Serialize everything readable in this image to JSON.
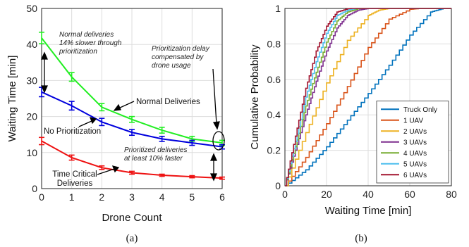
{
  "chart_data": [
    {
      "type": "line",
      "caption": "(a)",
      "title": "",
      "xlabel": "Drone Count",
      "ylabel": "Waiting Time [min]",
      "xlim": [
        0,
        6
      ],
      "ylim": [
        0,
        50
      ],
      "xticks": [
        "0",
        "1",
        "2",
        "3",
        "4",
        "5",
        "6"
      ],
      "yticks": [
        "0",
        "10",
        "20",
        "30",
        "40",
        "50"
      ],
      "grid": true,
      "x": [
        0,
        1,
        2,
        3,
        4,
        5,
        6
      ],
      "series": [
        {
          "color": "#22ee22",
          "values": [
            41.8,
            31.0,
            22.6,
            19.2,
            16.2,
            13.8,
            12.7
          ],
          "errors": [
            1.6,
            1.2,
            1.0,
            0.8,
            0.8,
            0.7,
            0.7
          ]
        },
        {
          "color": "#0000dd",
          "values": [
            26.8,
            23.0,
            18.5,
            15.6,
            13.8,
            12.7,
            11.6
          ],
          "errors": [
            1.3,
            1.2,
            1.0,
            0.8,
            0.7,
            0.7,
            0.6
          ]
        },
        {
          "color": "#ee1111",
          "values": [
            13.2,
            8.6,
            5.8,
            4.4,
            3.7,
            3.3,
            2.9
          ],
          "errors": [
            1.0,
            0.7,
            0.5,
            0.4,
            0.3,
            0.3,
            0.3
          ]
        }
      ],
      "annotations": {
        "normal_note": [
          "Normal deliveries",
          "14% slower through",
          "prioritization"
        ],
        "delay_note": [
          "Prioritization delay",
          "compensated by",
          "drone usage"
        ],
        "faster_note": [
          "Prioritized deliveries",
          "at least 10% faster"
        ],
        "normal_label": "Normal Deliveries",
        "noprio_label": "No Prioritization",
        "critical_label": [
          "Time Critical",
          "Deliveries"
        ]
      }
    },
    {
      "type": "line",
      "caption": "(b)",
      "title": "",
      "xlabel": "Waiting Time [min]",
      "ylabel": "Cumulative Probability",
      "xlim": [
        0,
        80
      ],
      "ylim": [
        0,
        1
      ],
      "xticks": [
        "0",
        "20",
        "40",
        "60",
        "80"
      ],
      "yticks": [
        "0",
        "0.2",
        "0.4",
        "0.6",
        "0.8",
        "1"
      ],
      "grid": true,
      "legend_position": "bottom-right",
      "series": [
        {
          "name": "Truck Only",
          "color": "#0072bd",
          "x": [
            0,
            10,
            20,
            30,
            40,
            50,
            60,
            70,
            76
          ],
          "y": [
            0,
            0.09,
            0.22,
            0.37,
            0.52,
            0.68,
            0.85,
            0.98,
            1.0
          ]
        },
        {
          "name": "1 UAV",
          "color": "#d95319",
          "x": [
            0,
            10,
            20,
            30,
            40,
            50,
            60,
            65
          ],
          "y": [
            0,
            0.16,
            0.35,
            0.56,
            0.78,
            0.94,
            0.995,
            1.0
          ]
        },
        {
          "name": "2 UAVs",
          "color": "#edb120",
          "x": [
            0,
            10,
            20,
            30,
            40,
            45,
            50
          ],
          "y": [
            0,
            0.3,
            0.58,
            0.82,
            0.96,
            0.99,
            1.0
          ]
        },
        {
          "name": "3 UAVs",
          "color": "#7e2f8e",
          "x": [
            0,
            5,
            10,
            15,
            20,
            25,
            30,
            35,
            40
          ],
          "y": [
            0,
            0.2,
            0.4,
            0.59,
            0.76,
            0.89,
            0.96,
            0.99,
            1.0
          ]
        },
        {
          "name": "4 UAVs",
          "color": "#77ac30",
          "x": [
            0,
            5,
            10,
            15,
            20,
            25,
            30,
            35,
            38
          ],
          "y": [
            0,
            0.22,
            0.45,
            0.64,
            0.81,
            0.93,
            0.98,
            0.998,
            1.0
          ]
        },
        {
          "name": "5 UAVs",
          "color": "#4dbeee",
          "x": [
            0,
            5,
            10,
            15,
            20,
            25,
            30,
            34
          ],
          "y": [
            0,
            0.25,
            0.5,
            0.7,
            0.86,
            0.96,
            0.99,
            1.0
          ]
        },
        {
          "name": "6 UAVs",
          "color": "#a2142f",
          "x": [
            0,
            5,
            10,
            15,
            20,
            25,
            30,
            32
          ],
          "y": [
            0,
            0.28,
            0.55,
            0.76,
            0.9,
            0.98,
            0.998,
            1.0
          ]
        }
      ]
    }
  ]
}
